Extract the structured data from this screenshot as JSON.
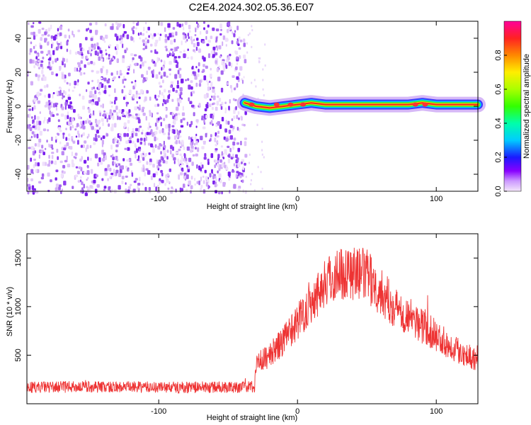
{
  "title": "C2E4.2024.302.05.36.E07",
  "chart_data": [
    {
      "type": "heatmap",
      "xlabel": "Height of straight line (km)",
      "ylabel": "Frequency (Hz)",
      "xlim": [
        -195,
        130
      ],
      "ylim": [
        -50,
        50
      ],
      "xticks": [
        -100,
        0,
        100
      ],
      "yticks": [
        -40,
        -20,
        0,
        20,
        40
      ],
      "colorbar": {
        "label": "Normalized spectral amplitude",
        "range": [
          0,
          1
        ],
        "ticks": [
          "0.0",
          "0.2",
          "0.4",
          "0.6",
          "0.8"
        ],
        "tick_values": [
          0,
          0.2,
          0.4,
          0.6,
          0.8
        ]
      },
      "noise_region_x": [
        -195,
        -38
      ],
      "signal_track": {
        "x": [
          -38,
          -30,
          -20,
          -10,
          0,
          10,
          20,
          40,
          60,
          80,
          90,
          100,
          130
        ],
        "y": [
          2,
          0,
          -1,
          0,
          1,
          2,
          1,
          1,
          1,
          1,
          2,
          1,
          1
        ]
      }
    },
    {
      "type": "line",
      "xlabel": "Height of straight line (km)",
      "ylabel": "SNR (10 * v/v)",
      "xlim": [
        -195,
        130
      ],
      "ylim": [
        0,
        1750
      ],
      "xticks": [
        -100,
        0,
        100
      ],
      "yticks": [
        500,
        1000,
        1500
      ],
      "series": [
        {
          "color": "#ee3333",
          "x": [
            -195,
            -150,
            -100,
            -50,
            -31,
            -30,
            -25,
            -20,
            -10,
            0,
            10,
            20,
            30,
            40,
            50,
            60,
            70,
            80,
            90,
            100,
            110,
            120,
            130
          ],
          "y": [
            170,
            175,
            170,
            170,
            175,
            420,
            450,
            500,
            650,
            850,
            1050,
            1250,
            1350,
            1350,
            1320,
            1150,
            1000,
            900,
            800,
            700,
            600,
            520,
            450
          ]
        }
      ]
    }
  ]
}
